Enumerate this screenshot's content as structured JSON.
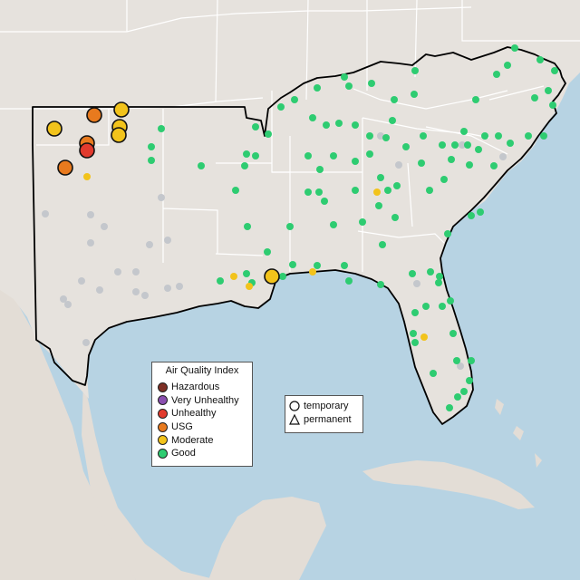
{
  "legend_aqi": {
    "title": "Air Quality Index",
    "items": [
      {
        "label": "Hazardous",
        "color": "#7e2f25"
      },
      {
        "label": "Very Unhealthy",
        "color": "#8b4fb0"
      },
      {
        "label": "Unhealthy",
        "color": "#e23b2e"
      },
      {
        "label": "USG",
        "color": "#e87a1e"
      },
      {
        "label": "Moderate",
        "color": "#f2c31b"
      },
      {
        "label": "Good",
        "color": "#2ecc71"
      }
    ]
  },
  "legend_type": {
    "items": [
      {
        "label": "temporary",
        "shape": "circle"
      },
      {
        "label": "permanent",
        "shape": "triangle"
      }
    ]
  },
  "colors": {
    "water": "#b7d3e3",
    "land": "#e6e2dd",
    "region": "#ebe7e3",
    "no_data": "#c4c7cc",
    "state_border": "#ffffff",
    "region_outline": "#000000"
  }
}
